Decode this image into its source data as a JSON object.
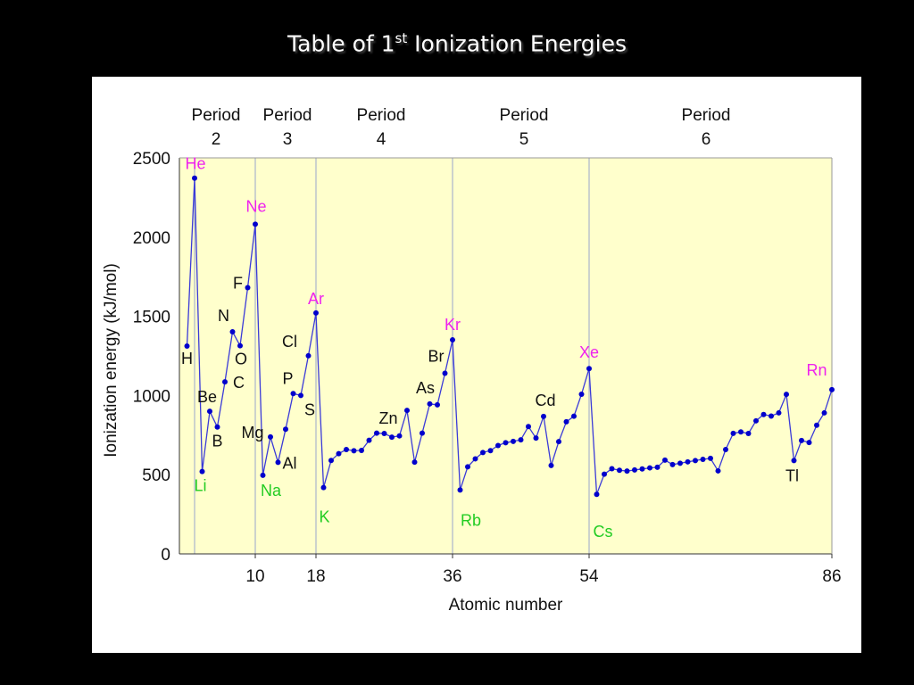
{
  "slide": {
    "title_prefix": "Table of 1",
    "title_sup": "st",
    "title_suffix": " Ionization Energies"
  },
  "periods": [
    {
      "word": "Period",
      "number": "2"
    },
    {
      "word": "Period",
      "number": "3"
    },
    {
      "word": "Period",
      "number": "4"
    },
    {
      "word": "Period",
      "number": "5"
    },
    {
      "word": "Period",
      "number": "6"
    }
  ],
  "colors": {
    "plot_background": "#ffffcc",
    "line": "#3a3ad8",
    "marker": "#0000cc",
    "noble_gas_label": "#ee22ee",
    "alkali_metal_label": "#22cc22",
    "other_label": "#111111",
    "gridline": "#9aa4cc"
  },
  "chart_data": {
    "type": "line",
    "xlabel": "Atomic number",
    "ylabel": "Ionization energy (kJ/mol)",
    "xlim": [
      0,
      86
    ],
    "ylim": [
      0,
      2500
    ],
    "y_ticks": [
      0,
      500,
      1000,
      1500,
      2000,
      2500
    ],
    "x_ticks": [
      10,
      18,
      36,
      54,
      86
    ],
    "gridlines_x": [
      2,
      10,
      18,
      36,
      54
    ],
    "x": [
      1,
      2,
      3,
      4,
      5,
      6,
      7,
      8,
      9,
      10,
      11,
      12,
      13,
      14,
      15,
      16,
      17,
      18,
      19,
      20,
      21,
      22,
      23,
      24,
      25,
      26,
      27,
      28,
      29,
      30,
      31,
      32,
      33,
      34,
      35,
      36,
      37,
      38,
      39,
      40,
      41,
      42,
      43,
      44,
      45,
      46,
      47,
      48,
      49,
      50,
      51,
      52,
      53,
      54,
      55,
      56,
      57,
      58,
      59,
      60,
      61,
      62,
      63,
      64,
      65,
      66,
      67,
      68,
      69,
      70,
      71,
      72,
      73,
      74,
      75,
      76,
      77,
      78,
      79,
      80,
      81,
      82,
      83,
      84,
      85,
      86
    ],
    "values": [
      1312,
      2372,
      520,
      900,
      801,
      1086,
      1402,
      1314,
      1681,
      2081,
      496,
      738,
      578,
      787,
      1012,
      1000,
      1251,
      1521,
      419,
      590,
      633,
      659,
      651,
      653,
      717,
      762,
      760,
      737,
      745,
      906,
      579,
      762,
      947,
      941,
      1140,
      1351,
      403,
      550,
      600,
      640,
      652,
      684,
      702,
      710,
      720,
      804,
      731,
      868,
      558,
      709,
      834,
      869,
      1008,
      1170,
      376,
      503,
      538,
      528,
      523,
      530,
      536,
      543,
      547,
      592,
      564,
      572,
      581,
      589,
      597,
      603,
      524,
      659,
      761,
      770,
      760,
      840,
      880,
      870,
      890,
      1007,
      589,
      716,
      703,
      812,
      890,
      1037
    ],
    "labels": [
      {
        "text": "H",
        "x": 1,
        "group": "other"
      },
      {
        "text": "He",
        "x": 2,
        "group": "noble"
      },
      {
        "text": "Li",
        "x": 3,
        "group": "alkali"
      },
      {
        "text": "Be",
        "x": 4,
        "group": "other"
      },
      {
        "text": "B",
        "x": 5,
        "group": "other"
      },
      {
        "text": "C",
        "x": 6,
        "group": "other"
      },
      {
        "text": "N",
        "x": 7,
        "group": "other"
      },
      {
        "text": "O",
        "x": 8,
        "group": "other"
      },
      {
        "text": "F",
        "x": 9,
        "group": "other"
      },
      {
        "text": "Ne",
        "x": 10,
        "group": "noble"
      },
      {
        "text": "Na",
        "x": 11,
        "group": "alkali"
      },
      {
        "text": "Mg",
        "x": 12,
        "group": "other"
      },
      {
        "text": "Al",
        "x": 13,
        "group": "other"
      },
      {
        "text": "P",
        "x": 15,
        "group": "other"
      },
      {
        "text": "S",
        "x": 16,
        "group": "other"
      },
      {
        "text": "Cl",
        "x": 17,
        "group": "other"
      },
      {
        "text": "Ar",
        "x": 18,
        "group": "noble"
      },
      {
        "text": "K",
        "x": 19,
        "group": "alkali"
      },
      {
        "text": "Zn",
        "x": 30,
        "group": "other"
      },
      {
        "text": "As",
        "x": 33,
        "group": "other"
      },
      {
        "text": "Br",
        "x": 35,
        "group": "other"
      },
      {
        "text": "Kr",
        "x": 36,
        "group": "noble"
      },
      {
        "text": "Rb",
        "x": 37,
        "group": "alkali"
      },
      {
        "text": "Cd",
        "x": 48,
        "group": "other"
      },
      {
        "text": "Xe",
        "x": 54,
        "group": "noble"
      },
      {
        "text": "Cs",
        "x": 55,
        "group": "alkali"
      },
      {
        "text": "Tl",
        "x": 81,
        "group": "other"
      },
      {
        "text": "Rn",
        "x": 86,
        "group": "noble"
      }
    ]
  }
}
